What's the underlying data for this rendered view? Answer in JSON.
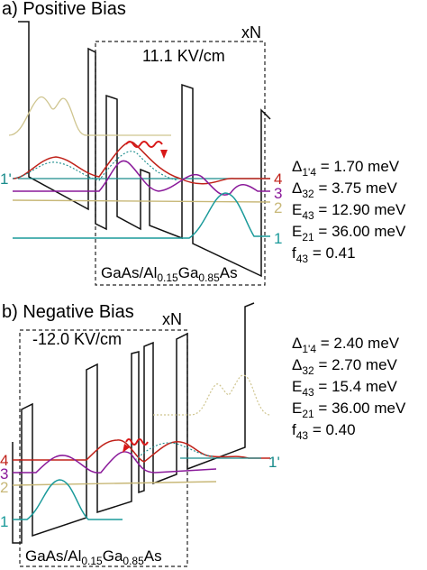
{
  "panels": [
    {
      "id": "a",
      "title": "a) Positive Bias",
      "field": "11.1 KV/cm",
      "period_label": "xN",
      "material": {
        "a": "GaAs/Al",
        "b": "0.15",
        "c": "Ga",
        "d": "0.85",
        "e": "As"
      },
      "levels": [
        {
          "label": "1'",
          "color": "#1a8c8c"
        },
        {
          "label": "4",
          "color": "#c0221a"
        },
        {
          "label": "3",
          "color": "#8a1a9a"
        },
        {
          "label": "2",
          "color": "#c8b878"
        },
        {
          "label": "1",
          "color": "#1a9a9a"
        }
      ],
      "params": [
        {
          "sym": "Δ",
          "sub": "1'4",
          "value": " = 1.70 meV"
        },
        {
          "sym": "Δ",
          "sub": "32",
          "value": " = 3.75 meV"
        },
        {
          "sym": "E",
          "sub": "43",
          "value": " = 12.90 meV"
        },
        {
          "sym": "E",
          "sub": "21",
          "value": " = 36.00 meV"
        },
        {
          "sym": "f",
          "sub": "43",
          "value": " = 0.41"
        }
      ]
    },
    {
      "id": "b",
      "title": "b) Negative Bias",
      "field": "-12.0 KV/cm",
      "period_label": "xN",
      "material": {
        "a": "GaAs/Al",
        "b": "0.15",
        "c": "Ga",
        "d": "0.85",
        "e": "As"
      },
      "levels": [
        {
          "label": "4",
          "color": "#c0221a"
        },
        {
          "label": "3",
          "color": "#8a1a9a"
        },
        {
          "label": "2",
          "color": "#c8b878"
        },
        {
          "label": "1",
          "color": "#1a9a9a"
        },
        {
          "label": "1'",
          "color": "#1a8c8c"
        }
      ],
      "params": [
        {
          "sym": "Δ",
          "sub": "1'4",
          "value": " = 2.40 meV"
        },
        {
          "sym": "Δ",
          "sub": "32",
          "value": " = 2.70 meV"
        },
        {
          "sym": "E",
          "sub": "43",
          "value": " = 15.4 meV"
        },
        {
          "sym": "E",
          "sub": "21",
          "value": " = 36.00 meV"
        },
        {
          "sym": "f",
          "sub": "43",
          "value": " = 0.40"
        }
      ]
    }
  ]
}
